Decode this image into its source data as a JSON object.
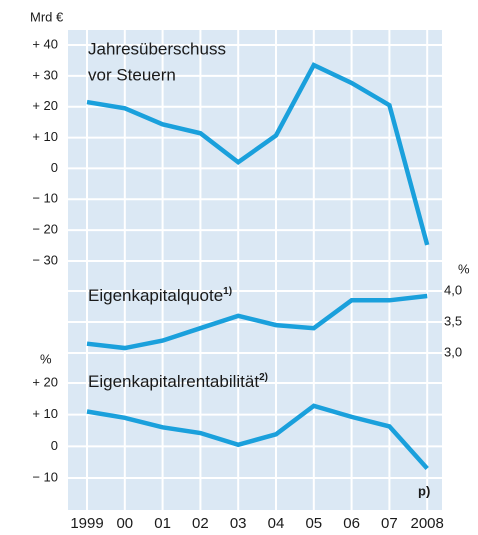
{
  "chart_data": [
    {
      "type": "line",
      "title_lines": [
        "Jahresüberschuss",
        "vor Steuern"
      ],
      "unit": "Mrd €",
      "axis_side": "left",
      "categories": [
        "1999",
        "00",
        "01",
        "02",
        "03",
        "04",
        "05",
        "06",
        "07",
        "2008"
      ],
      "values": [
        21.5,
        19.5,
        14.3,
        11.4,
        2,
        10.7,
        33.5,
        27.7,
        20.5,
        -24.8
      ],
      "color": "#1aa0dc",
      "ylim": [
        -30,
        40
      ],
      "yticks": [
        {
          "value": -30,
          "label": "− 30"
        },
        {
          "value": -20,
          "label": "− 20"
        },
        {
          "value": -10,
          "label": "− 10"
        },
        0,
        {
          "value": 10,
          "label": "+ 10"
        },
        {
          "value": 20,
          "label": "+ 20"
        },
        {
          "value": 30,
          "label": "+ 30"
        },
        {
          "value": 40,
          "label": "+ 40"
        }
      ],
      "grid": true
    },
    {
      "type": "line",
      "title": "Eigenkapitalquote",
      "title_note": "1)",
      "unit": "%",
      "axis_side": "right",
      "categories": [
        "1999",
        "00",
        "01",
        "02",
        "03",
        "04",
        "05",
        "06",
        "07",
        "2008"
      ],
      "values": [
        3.15,
        3.08,
        3.2,
        3.4,
        3.6,
        3.45,
        3.4,
        3.85,
        3.85,
        3.92
      ],
      "color": "#1aa0dc",
      "ylim": [
        3,
        4
      ],
      "yticks": [
        {
          "value": 3,
          "label": "3,0"
        },
        {
          "value": 3.5,
          "label": "3,5"
        },
        {
          "value": 4,
          "label": "4,0"
        }
      ],
      "grid": true
    },
    {
      "type": "line",
      "title": "Eigenkapitalrentabilität",
      "title_note": "2)",
      "unit": "%",
      "axis_side": "left",
      "categories": [
        "1999",
        "00",
        "01",
        "02",
        "03",
        "04",
        "05",
        "06",
        "07",
        "2008"
      ],
      "values": [
        11,
        9,
        6,
        4.2,
        0.5,
        3.8,
        12.8,
        9.3,
        6.3,
        -7
      ],
      "color": "#1aa0dc",
      "ylim": [
        -10,
        20
      ],
      "yticks": [
        {
          "value": -10,
          "label": "− 10"
        },
        0,
        {
          "value": 10,
          "label": "+ 10"
        },
        {
          "value": 20,
          "label": "+ 20"
        }
      ],
      "grid": true,
      "annotation": "p)"
    }
  ]
}
